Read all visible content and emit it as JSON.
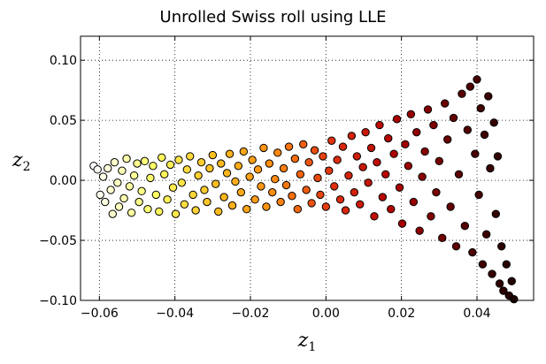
{
  "chart_data": {
    "type": "scatter",
    "title": "Unrolled Swiss roll using LLE",
    "xlabel": "z",
    "xlabel_sub": "1",
    "ylabel": "z",
    "ylabel_sub": "2",
    "xlim": [
      -0.065,
      0.055
    ],
    "ylim": [
      -0.1,
      0.12
    ],
    "x_ticks": [
      -0.06,
      -0.04,
      -0.02,
      0.0,
      0.02,
      0.04
    ],
    "x_tick_labels": [
      "−0.06",
      "−0.04",
      "−0.02",
      "0.00",
      "0.02",
      "0.04"
    ],
    "y_ticks": [
      -0.1,
      -0.05,
      0.0,
      0.05,
      0.1
    ],
    "y_tick_labels": [
      "−0.10",
      "−0.05",
      "0.00",
      "0.05",
      "0.10"
    ],
    "grid": true,
    "grid_style": "dotted",
    "colormap": "hot_r",
    "color_stops": [
      "#ffffff",
      "#ffff66",
      "#ffc020",
      "#ff8c10",
      "#e03010",
      "#b00000",
      "#600000",
      "#200000"
    ],
    "points": [
      {
        "x": -0.0615,
        "y": 0.012
      },
      {
        "x": -0.0605,
        "y": 0.009
      },
      {
        "x": -0.0598,
        "y": -0.012
      },
      {
        "x": -0.059,
        "y": 0.003
      },
      {
        "x": -0.0585,
        "y": -0.018
      },
      {
        "x": -0.0578,
        "y": 0.01
      },
      {
        "x": -0.057,
        "y": -0.008
      },
      {
        "x": -0.0565,
        "y": -0.028
      },
      {
        "x": -0.056,
        "y": 0.015
      },
      {
        "x": -0.0552,
        "y": -0.002
      },
      {
        "x": -0.0548,
        "y": -0.022
      },
      {
        "x": -0.054,
        "y": 0.008
      },
      {
        "x": -0.0535,
        "y": -0.015
      },
      {
        "x": -0.0528,
        "y": 0.018
      },
      {
        "x": -0.052,
        "y": -0.005
      },
      {
        "x": -0.0515,
        "y": -0.027
      },
      {
        "x": -0.0508,
        "y": 0.004
      },
      {
        "x": -0.05,
        "y": 0.014
      },
      {
        "x": -0.0495,
        "y": -0.018
      },
      {
        "x": -0.0488,
        "y": -0.009
      },
      {
        "x": -0.048,
        "y": 0.016
      },
      {
        "x": -0.0472,
        "y": -0.024
      },
      {
        "x": -0.0465,
        "y": 0.002
      },
      {
        "x": -0.0458,
        "y": 0.012
      },
      {
        "x": -0.045,
        "y": -0.012
      },
      {
        "x": -0.0442,
        "y": -0.026
      },
      {
        "x": -0.0435,
        "y": 0.019
      },
      {
        "x": -0.0428,
        "y": 0.005
      },
      {
        "x": -0.042,
        "y": -0.016
      },
      {
        "x": -0.0412,
        "y": 0.013
      },
      {
        "x": -0.0405,
        "y": -0.006
      },
      {
        "x": -0.0398,
        "y": -0.028
      },
      {
        "x": -0.039,
        "y": 0.017
      },
      {
        "x": -0.0382,
        "y": -0.002
      },
      {
        "x": -0.0375,
        "y": -0.02
      },
      {
        "x": -0.0368,
        "y": 0.009
      },
      {
        "x": -0.036,
        "y": 0.02
      },
      {
        "x": -0.0352,
        "y": -0.012
      },
      {
        "x": -0.0345,
        "y": -0.025
      },
      {
        "x": -0.0338,
        "y": 0.004
      },
      {
        "x": -0.033,
        "y": 0.015
      },
      {
        "x": -0.0322,
        "y": -0.008
      },
      {
        "x": -0.0315,
        "y": -0.018
      },
      {
        "x": -0.0308,
        "y": 0.01
      },
      {
        "x": -0.03,
        "y": 0.021
      },
      {
        "x": -0.0292,
        "y": -0.003
      },
      {
        "x": -0.0285,
        "y": -0.026
      },
      {
        "x": -0.0278,
        "y": 0.014
      },
      {
        "x": -0.027,
        "y": -0.014
      },
      {
        "x": -0.0262,
        "y": 0.006
      },
      {
        "x": -0.0255,
        "y": 0.022
      },
      {
        "x": -0.0248,
        "y": -0.021
      },
      {
        "x": -0.024,
        "y": -0.001
      },
      {
        "x": -0.0232,
        "y": 0.012
      },
      {
        "x": -0.0225,
        "y": -0.01
      },
      {
        "x": -0.0218,
        "y": 0.024
      },
      {
        "x": -0.021,
        "y": -0.024
      },
      {
        "x": -0.0202,
        "y": 0.003
      },
      {
        "x": -0.0195,
        "y": 0.017
      },
      {
        "x": -0.0188,
        "y": -0.016
      },
      {
        "x": -0.018,
        "y": 0.009
      },
      {
        "x": -0.0172,
        "y": -0.005
      },
      {
        "x": -0.0165,
        "y": 0.027
      },
      {
        "x": -0.0158,
        "y": -0.022
      },
      {
        "x": -0.015,
        "y": 0.014
      },
      {
        "x": -0.0142,
        "y": -0.01
      },
      {
        "x": -0.0135,
        "y": 0.001
      },
      {
        "x": -0.0128,
        "y": 0.023
      },
      {
        "x": -0.012,
        "y": -0.018
      },
      {
        "x": -0.0112,
        "y": 0.01
      },
      {
        "x": -0.0105,
        "y": -0.004
      },
      {
        "x": -0.0098,
        "y": 0.028
      },
      {
        "x": -0.009,
        "y": -0.013
      },
      {
        "x": -0.0082,
        "y": 0.018
      },
      {
        "x": -0.0075,
        "y": -0.024
      },
      {
        "x": -0.0068,
        "y": 0.005
      },
      {
        "x": -0.006,
        "y": 0.03
      },
      {
        "x": -0.0052,
        "y": -0.008
      },
      {
        "x": -0.0045,
        "y": 0.015
      },
      {
        "x": -0.0038,
        "y": -0.019
      },
      {
        "x": -0.003,
        "y": 0.025
      },
      {
        "x": -0.0022,
        "y": 0.002
      },
      {
        "x": -0.0015,
        "y": -0.012
      },
      {
        "x": -0.0008,
        "y": 0.02
      },
      {
        "x": 0.0,
        "y": -0.022
      },
      {
        "x": 0.0008,
        "y": 0.008
      },
      {
        "x": 0.0015,
        "y": 0.033
      },
      {
        "x": 0.0022,
        "y": -0.005
      },
      {
        "x": 0.003,
        "y": 0.017
      },
      {
        "x": 0.0038,
        "y": -0.016
      },
      {
        "x": 0.0045,
        "y": 0.028
      },
      {
        "x": 0.0052,
        "y": -0.025
      },
      {
        "x": 0.006,
        "y": 0.004
      },
      {
        "x": 0.0068,
        "y": 0.037
      },
      {
        "x": 0.0075,
        "y": -0.01
      },
      {
        "x": 0.0082,
        "y": 0.02
      },
      {
        "x": 0.009,
        "y": -0.02
      },
      {
        "x": 0.0098,
        "y": 0.011
      },
      {
        "x": 0.0105,
        "y": 0.04
      },
      {
        "x": 0.0112,
        "y": -0.002
      },
      {
        "x": 0.012,
        "y": 0.027
      },
      {
        "x": 0.0128,
        "y": -0.03
      },
      {
        "x": 0.0135,
        "y": 0.015
      },
      {
        "x": 0.0142,
        "y": 0.046
      },
      {
        "x": 0.015,
        "y": -0.014
      },
      {
        "x": 0.0158,
        "y": 0.005
      },
      {
        "x": 0.0165,
        "y": 0.035
      },
      {
        "x": 0.0172,
        "y": -0.024
      },
      {
        "x": 0.018,
        "y": 0.022
      },
      {
        "x": 0.0188,
        "y": 0.051
      },
      {
        "x": 0.0195,
        "y": -0.006
      },
      {
        "x": 0.0202,
        "y": -0.036
      },
      {
        "x": 0.021,
        "y": 0.03
      },
      {
        "x": 0.0218,
        "y": 0.012
      },
      {
        "x": 0.0225,
        "y": 0.055
      },
      {
        "x": 0.0232,
        "y": -0.018
      },
      {
        "x": 0.024,
        "y": 0.04
      },
      {
        "x": 0.0248,
        "y": -0.042
      },
      {
        "x": 0.0255,
        "y": 0.003
      },
      {
        "x": 0.0262,
        "y": 0.024
      },
      {
        "x": 0.027,
        "y": 0.059
      },
      {
        "x": 0.0278,
        "y": -0.03
      },
      {
        "x": 0.0285,
        "y": 0.046
      },
      {
        "x": 0.0292,
        "y": -0.01
      },
      {
        "x": 0.03,
        "y": 0.016
      },
      {
        "x": 0.0308,
        "y": -0.048
      },
      {
        "x": 0.0315,
        "y": 0.064
      },
      {
        "x": 0.0322,
        "y": 0.034
      },
      {
        "x": 0.033,
        "y": -0.022
      },
      {
        "x": 0.0338,
        "y": 0.052
      },
      {
        "x": 0.0345,
        "y": -0.055
      },
      {
        "x": 0.0352,
        "y": 0.005
      },
      {
        "x": 0.036,
        "y": 0.072
      },
      {
        "x": 0.0368,
        "y": -0.038
      },
      {
        "x": 0.0375,
        "y": 0.042
      },
      {
        "x": 0.0382,
        "y": 0.078
      },
      {
        "x": 0.0388,
        "y": -0.06
      },
      {
        "x": 0.0395,
        "y": 0.022
      },
      {
        "x": 0.04,
        "y": 0.084
      },
      {
        "x": 0.0405,
        "y": -0.012
      },
      {
        "x": 0.041,
        "y": 0.06
      },
      {
        "x": 0.0415,
        "y": -0.07
      },
      {
        "x": 0.042,
        "y": 0.038
      },
      {
        "x": 0.0425,
        "y": -0.045
      },
      {
        "x": 0.043,
        "y": 0.07
      },
      {
        "x": 0.0435,
        "y": 0.01
      },
      {
        "x": 0.044,
        "y": -0.078
      },
      {
        "x": 0.0445,
        "y": 0.048
      },
      {
        "x": 0.045,
        "y": -0.028
      },
      {
        "x": 0.0455,
        "y": 0.02
      },
      {
        "x": 0.046,
        "y": -0.086
      },
      {
        "x": 0.0465,
        "y": -0.055
      },
      {
        "x": 0.047,
        "y": -0.092
      },
      {
        "x": 0.0478,
        "y": -0.07
      },
      {
        "x": 0.0485,
        "y": -0.096
      },
      {
        "x": 0.0492,
        "y": -0.084
      },
      {
        "x": 0.0498,
        "y": -0.099
      }
    ]
  }
}
